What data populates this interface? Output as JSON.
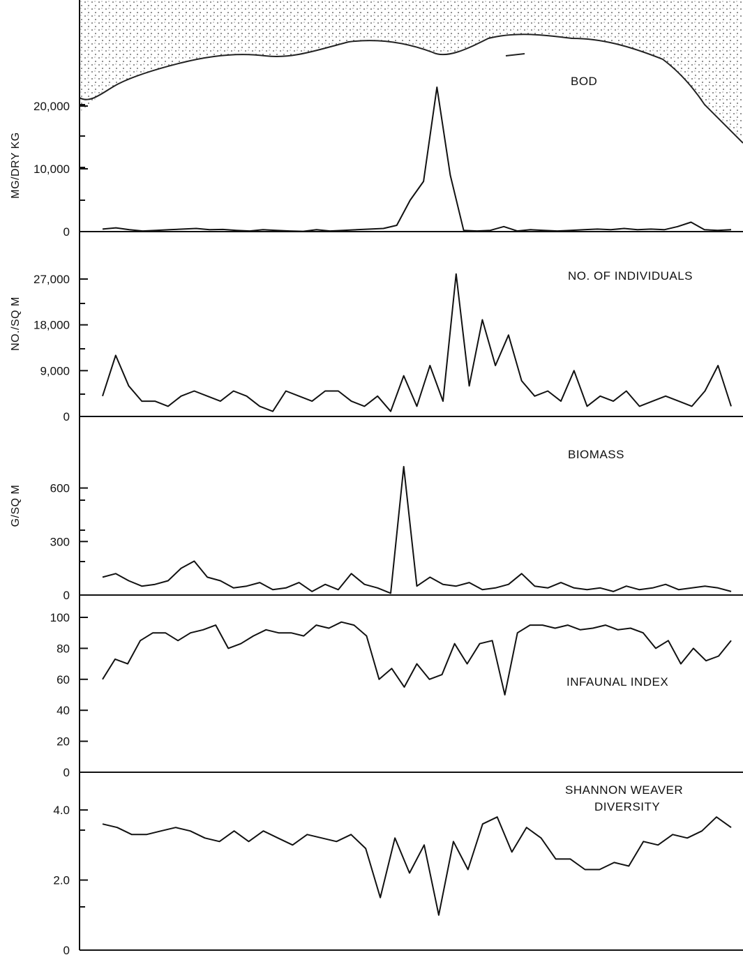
{
  "chart_data": [
    {
      "type": "line",
      "title": "BOD",
      "ylabel": "MG/DRY KG",
      "ylim": [
        0,
        20000
      ],
      "yticks": [
        0,
        10000,
        20000
      ],
      "ytick_labels": [
        "0",
        "10,000",
        "20,000"
      ],
      "series": [
        {
          "values": [
            400,
            600,
            300,
            100,
            200,
            300,
            400,
            500,
            300,
            350,
            200,
            100,
            300,
            200,
            100,
            50,
            300,
            100,
            200,
            300,
            400,
            500,
            1000,
            5000,
            8000,
            23000,
            9000,
            200,
            100,
            200,
            800,
            100,
            300,
            200,
            100,
            200,
            300,
            400,
            300,
            500,
            300,
            400,
            300,
            800,
            1500,
            300,
            200,
            300
          ],
          "ranges": [
            [
              400,
              1000
            ],
            [
              100,
              500
            ],
            [
              4000,
              6000
            ],
            [
              7000,
              9000
            ],
            [
              20000,
              23500
            ],
            [
              8000,
              10000
            ],
            [
              100,
              1500
            ],
            [
              100,
              200
            ],
            [
              1000,
              1500
            ]
          ]
        }
      ],
      "coastline_labels": []
    },
    {
      "type": "line",
      "title": "NO. OF INDIVIDUALS",
      "ylabel": "NO./SQ M",
      "ylim": [
        0,
        27000
      ],
      "yticks": [
        0,
        9000,
        18000,
        27000
      ],
      "ytick_labels": [
        "0",
        "9,000",
        "18,000",
        "27,000"
      ],
      "series": [
        {
          "values": [
            4000,
            12000,
            6000,
            3000,
            3000,
            2000,
            4000,
            5000,
            4000,
            3000,
            5000,
            4000,
            2000,
            1000,
            5000,
            4000,
            3000,
            5000,
            5000,
            3000,
            2000,
            4000,
            1000,
            8000,
            2000,
            10000,
            3000,
            28000,
            6000,
            19000,
            10000,
            16000,
            7000,
            4000,
            5000,
            3000,
            9000,
            2000,
            4000,
            3000,
            5000,
            2000,
            3000,
            4000,
            3000,
            2000,
            5000,
            10000,
            2000
          ]
        }
      ]
    },
    {
      "type": "line",
      "title": "BIOMASS",
      "ylabel": "G/SQ M",
      "ylim": [
        0,
        700
      ],
      "yticks": [
        0,
        300,
        600
      ],
      "ytick_labels": [
        "0",
        "300",
        "600"
      ],
      "series": [
        {
          "values": [
            100,
            120,
            80,
            50,
            60,
            80,
            150,
            190,
            100,
            80,
            40,
            50,
            70,
            30,
            40,
            70,
            20,
            60,
            30,
            120,
            60,
            40,
            10,
            720,
            50,
            100,
            60,
            50,
            70,
            30,
            40,
            60,
            120,
            50,
            40,
            70,
            40,
            30,
            40,
            20,
            50,
            30,
            40,
            60,
            30,
            40,
            50,
            40,
            20
          ]
        }
      ]
    },
    {
      "type": "line",
      "title": "INFAUNAL INDEX",
      "ylim": [
        0,
        100
      ],
      "yticks": [
        0,
        20,
        40,
        60,
        80,
        100
      ],
      "ytick_labels": [
        "0",
        "20",
        "40",
        "60",
        "80",
        "100"
      ],
      "series": [
        {
          "values": [
            60,
            73,
            70,
            85,
            90,
            90,
            85,
            90,
            92,
            95,
            80,
            83,
            88,
            92,
            90,
            90,
            88,
            95,
            93,
            97,
            95,
            88,
            60,
            67,
            55,
            70,
            60,
            63,
            83,
            70,
            83,
            85,
            50,
            90,
            95,
            95,
            93,
            95,
            92,
            93,
            95,
            92,
            93,
            90,
            80,
            85,
            70,
            80,
            72,
            75,
            85
          ]
        }
      ]
    },
    {
      "type": "line",
      "title": "SHANNON WEAVER DIVERSITY",
      "ylim": [
        0,
        4.5
      ],
      "yticks": [
        0,
        2.0,
        4.0
      ],
      "ytick_labels": [
        "0",
        "2.0",
        "4.0"
      ],
      "series": [
        {
          "values": [
            3.6,
            3.5,
            3.3,
            3.3,
            3.4,
            3.5,
            3.4,
            3.2,
            3.1,
            3.4,
            3.1,
            3.4,
            3.2,
            3.0,
            3.3,
            3.2,
            3.1,
            3.3,
            2.9,
            1.5,
            3.2,
            2.2,
            3.0,
            1.0,
            3.1,
            2.3,
            3.6,
            3.8,
            2.8,
            3.5,
            3.2,
            2.6,
            2.6,
            2.3,
            2.3,
            2.5,
            2.4,
            3.1,
            3.0,
            3.3,
            3.2,
            3.4,
            3.8,
            3.5
          ]
        }
      ]
    }
  ]
}
